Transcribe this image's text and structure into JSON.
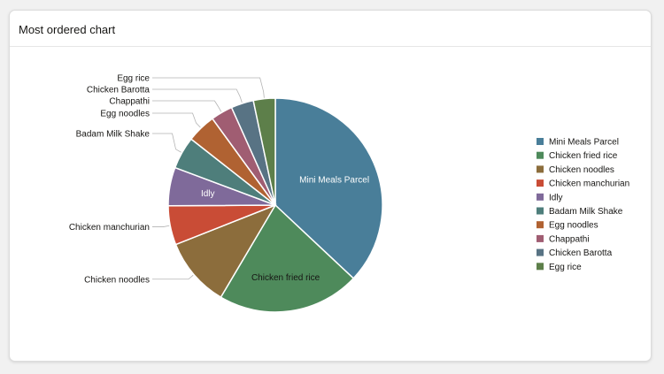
{
  "card": {
    "title": "Most ordered chart"
  },
  "chart_data": {
    "type": "pie",
    "title": "Most ordered chart",
    "legend_position": "right",
    "slices": [
      {
        "label": "Mini Meals Parcel",
        "value": 37.0,
        "color": "#497e99",
        "label_placement": "inside",
        "label_color": "#ffffff"
      },
      {
        "label": "Chicken fried rice",
        "value": 21.5,
        "color": "#4e8a5b",
        "label_placement": "inside",
        "label_color": "#161513"
      },
      {
        "label": "Chicken noodles",
        "value": 10.5,
        "color": "#8c6d3c",
        "label_placement": "outside"
      },
      {
        "label": "Chicken manchurian",
        "value": 5.9,
        "color": "#c94c36",
        "label_placement": "outside"
      },
      {
        "label": "Idly",
        "value": 5.8,
        "color": "#7f6a9a",
        "label_placement": "inside",
        "label_color": "#ffffff"
      },
      {
        "label": "Badam Milk Shake",
        "value": 4.9,
        "color": "#4e7e7b",
        "label_placement": "outside"
      },
      {
        "label": "Egg noodles",
        "value": 4.4,
        "color": "#b06232",
        "label_placement": "outside"
      },
      {
        "label": "Chappathi",
        "value": 3.3,
        "color": "#a05d72",
        "label_placement": "outside"
      },
      {
        "label": "Chicken Barotta",
        "value": 3.4,
        "color": "#587384",
        "label_placement": "outside"
      },
      {
        "label": "Egg rice",
        "value": 3.3,
        "color": "#5d7f4a",
        "label_placement": "outside"
      }
    ]
  }
}
